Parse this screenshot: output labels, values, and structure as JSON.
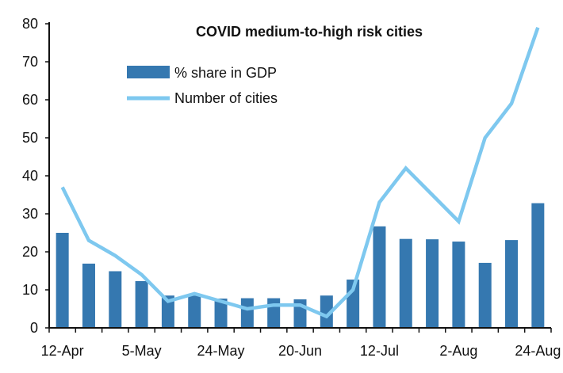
{
  "chart_data": {
    "type": "bar+line",
    "title": "COVID medium-to-high risk cities",
    "xlabel": "",
    "ylabel": "",
    "ylim": [
      0,
      80
    ],
    "yticks": [
      0,
      10,
      20,
      30,
      40,
      50,
      60,
      70,
      80
    ],
    "categories": [
      "12-Apr",
      "",
      "",
      "5-May",
      "",
      "",
      "24-May",
      "",
      "",
      "20-Jun",
      "",
      "",
      "12-Jul",
      "",
      "",
      "2-Aug",
      "",
      "",
      "24-Aug"
    ],
    "series": [
      {
        "name": "% share in GDP",
        "type": "bar",
        "color": "#3578b0",
        "values": [
          25,
          16.9,
          14.9,
          12.3,
          8.5,
          8.5,
          7.7,
          7.8,
          7.8,
          7.5,
          8.5,
          12.7,
          26.7,
          23.4,
          23.3,
          22.7,
          17.1,
          23.1,
          32.8
        ]
      },
      {
        "name": "Number of cities",
        "type": "line",
        "color": "#7ec8ef",
        "values": [
          37,
          23,
          19,
          14,
          7,
          9,
          7,
          5,
          6,
          6,
          3,
          10,
          33,
          42,
          35,
          28,
          50,
          59,
          79
        ]
      }
    ],
    "grid": false,
    "legend": "top-left"
  }
}
